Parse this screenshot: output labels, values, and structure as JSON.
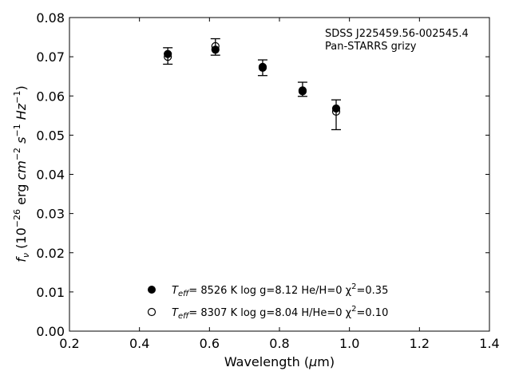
{
  "chart_data": {
    "type": "scatter",
    "xlabel": "Wavelength (μm)",
    "ylabel": "f_ν (10^-26 erg cm^-2 s^-1 Hz^-1)",
    "xlim": [
      0.2,
      1.4
    ],
    "ylim": [
      0.0,
      0.08
    ],
    "x_ticks": [
      "0.2",
      "0.4",
      "0.6",
      "0.8",
      "1.0",
      "1.2",
      "1.4"
    ],
    "y_ticks": [
      "0.00",
      "0.01",
      "0.02",
      "0.03",
      "0.04",
      "0.05",
      "0.06",
      "0.07",
      "0.08"
    ],
    "annotation": [
      "SDSS J225459.56-002545.4",
      "Pan-STARRS grizy"
    ],
    "observed": {
      "x": [
        0.481,
        0.617,
        0.752,
        0.866,
        0.962
      ],
      "y": [
        0.0702,
        0.0725,
        0.0672,
        0.0617,
        0.0552
      ],
      "err": [
        0.0021,
        0.0021,
        0.002,
        0.0018,
        0.0038
      ]
    },
    "series": [
      {
        "marker": "filled",
        "x": [
          0.481,
          0.617,
          0.752,
          0.866,
          0.962
        ],
        "y": [
          0.0707,
          0.0718,
          0.0674,
          0.0614,
          0.0568
        ],
        "legend": {
          "name": "T",
          "sub": "eff",
          "rest": "=  8526 K  log g=8.12  He/H=0  χ",
          "sup": "2",
          "tail": "=0.35"
        }
      },
      {
        "marker": "open",
        "x": [
          0.481,
          0.617,
          0.752,
          0.866,
          0.962
        ],
        "y": [
          0.07,
          0.0727,
          0.0672,
          0.0612,
          0.056
        ],
        "legend": {
          "name": "T",
          "sub": "eff",
          "rest": "=  8307 K  log g=8.04  H/He=0  χ",
          "sup": "2",
          "tail": "=0.10"
        }
      }
    ],
    "grid": false,
    "legend_position": "lower-center"
  }
}
